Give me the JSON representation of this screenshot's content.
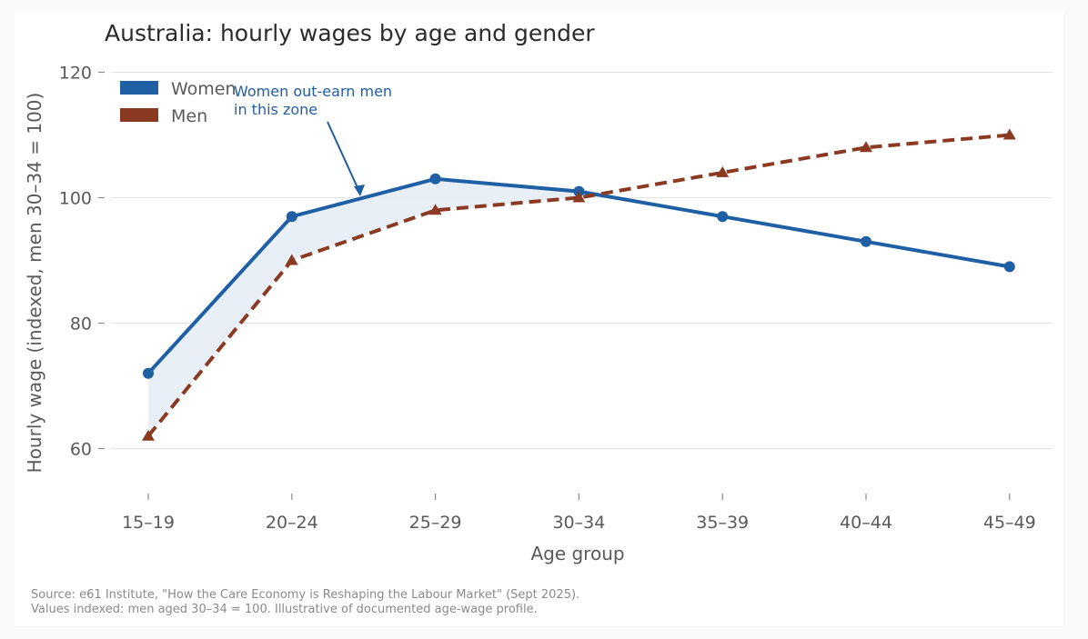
{
  "chart_data": {
    "type": "line",
    "title": "Australia: hourly wages by age and gender",
    "xlabel": "Age group",
    "ylabel": "Hourly wage (indexed, men 30–34 = 100)",
    "categories": [
      "15–19",
      "20–24",
      "25–29",
      "30–34",
      "35–39",
      "40–44",
      "45–49"
    ],
    "series": [
      {
        "name": "Women",
        "values": [
          72,
          97,
          103,
          101,
          97,
          93,
          89
        ],
        "color": "#1f5fa4",
        "marker": "circle",
        "line_style": "solid"
      },
      {
        "name": "Men",
        "values": [
          62,
          90,
          98,
          100,
          104,
          108,
          110
        ],
        "color": "#8b3a22",
        "marker": "triangle",
        "line_style": "dashed"
      }
    ],
    "ylim": [
      52,
      123
    ],
    "yticks": [
      60,
      80,
      100,
      120
    ],
    "grid": "horizontal",
    "legend_position": "top-left",
    "shaded_region": {
      "between": [
        "Women",
        "Men"
      ],
      "where": "Women > Men",
      "color": "#e6edf6"
    },
    "annotation": {
      "lines": [
        "Women out-earn men",
        "in this zone"
      ],
      "color": "#1f5fa4"
    },
    "source_note": [
      "Source: e61 Institute, \"How the Care Economy is Reshaping the Labour Market\" (Sept 2025).",
      "Values indexed: men aged 30–34 = 100. Illustrative of documented age-wage profile."
    ]
  }
}
